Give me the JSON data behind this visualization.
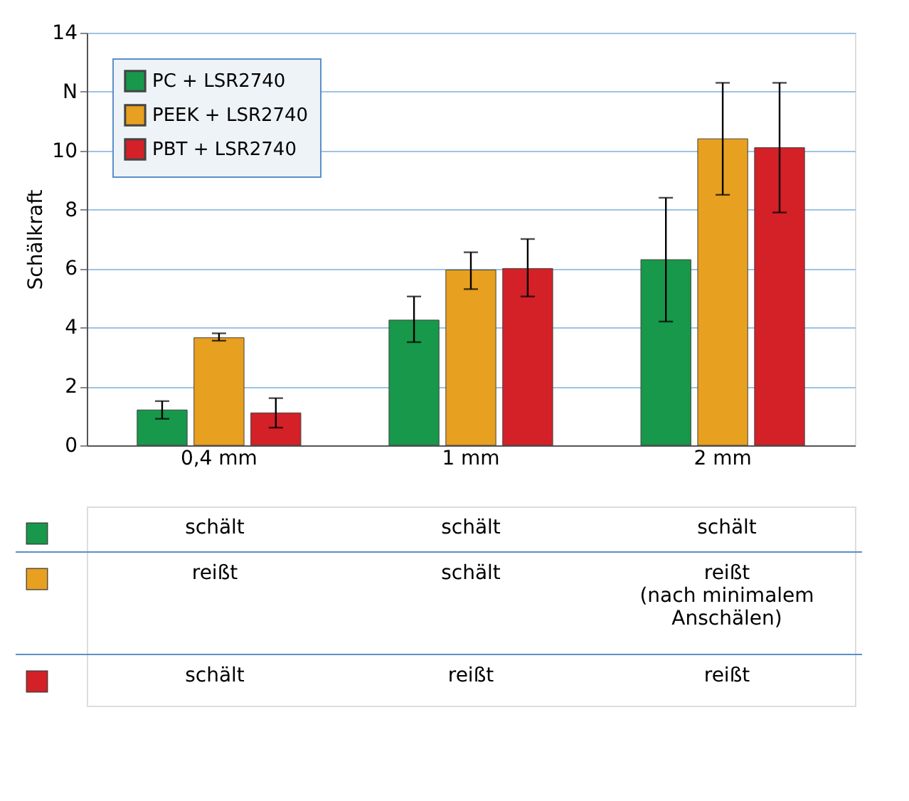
{
  "chart_data": {
    "type": "bar",
    "ylabel": "Schälkraft",
    "categories": [
      "0,4 mm",
      "1 mm",
      "2 mm"
    ],
    "series": [
      {
        "name": "PC + LSR2740",
        "color": "#17984a",
        "values": [
          1.2,
          4.25,
          6.3
        ],
        "errors": [
          [
            0.9,
            1.5
          ],
          [
            3.5,
            5.05
          ],
          [
            4.2,
            8.4
          ]
        ]
      },
      {
        "name": "PEEK + LSR2740",
        "color": "#e8a020",
        "values": [
          3.65,
          5.95,
          10.4
        ],
        "errors": [
          [
            3.55,
            3.8
          ],
          [
            5.3,
            6.55
          ],
          [
            8.5,
            12.3
          ]
        ]
      },
      {
        "name": "PBT + LSR2740",
        "color": "#d42027",
        "values": [
          1.1,
          6.0,
          10.1
        ],
        "errors": [
          [
            0.6,
            1.6
          ],
          [
            5.05,
            7.0
          ],
          [
            7.9,
            12.3
          ]
        ]
      }
    ],
    "ylim": [
      0,
      14
    ],
    "yticks": [
      0,
      2,
      4,
      6,
      8,
      10,
      {
        "value": 12,
        "label": "N"
      },
      14
    ],
    "grid": "y",
    "legend": "top left",
    "annotations": [
      "schält",
      "schält",
      "schält",
      "reißt",
      "schält",
      "reißt\n(nach minimalem\nAnschälen)",
      "schält",
      "reißt",
      "reißt"
    ]
  }
}
